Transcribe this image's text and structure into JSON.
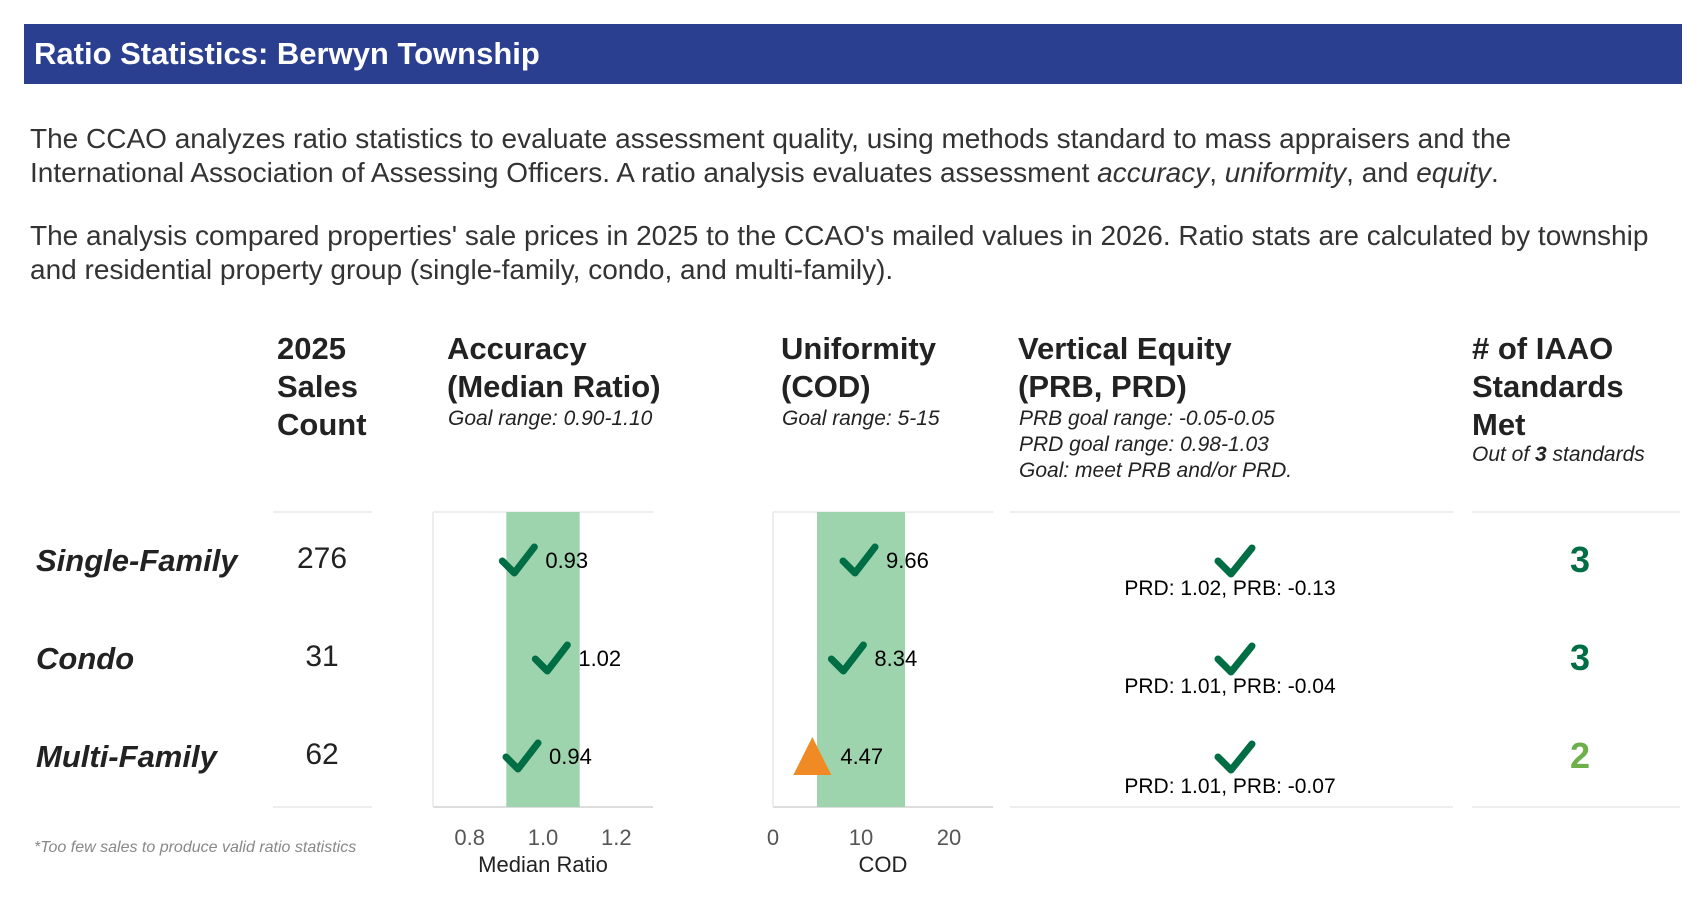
{
  "title": "Ratio Statistics: Berwyn Township",
  "intro": {
    "p1_before": "The CCAO analyzes ratio statistics to evaluate assessment quality, using methods standard to mass appraisers and the International Association of Assessing Officers. A ratio analysis evaluates assessment ",
    "p1_em1": "accuracy",
    "p1_sep1": ", ",
    "p1_em2": "uniformity",
    "p1_sep2": ", and ",
    "p1_em3": "equity",
    "p1_end": ".",
    "p2": "The analysis compared properties' sale prices in 2025 to the CCAO's mailed values in 2026. Ratio stats are calculated by township and residential property group (single-family, condo, and multi-family)."
  },
  "columns": {
    "sales": {
      "line1": "2025",
      "line2": "Sales",
      "line3": "Count"
    },
    "accuracy": {
      "line1": "Accuracy",
      "line2": "(Median Ratio)",
      "goal": "Goal range: 0.90-1.10"
    },
    "uniformity": {
      "line1": "Uniformity",
      "line2": "(COD)",
      "goal": "Goal range: 5-15"
    },
    "equity": {
      "line1": "Vertical Equity",
      "line2": "(PRB, PRD)",
      "goal1": "PRB goal range: -0.05-0.05",
      "goal2": "PRD goal range: 0.98-1.03",
      "goal3": "Goal: meet PRB and/or PRD."
    },
    "standards": {
      "line1": "# of IAAO",
      "line2": "Standards",
      "line3": "Met",
      "sub_before": "Out of ",
      "sub_num": "3",
      "sub_after": " standards"
    }
  },
  "rows": [
    {
      "label": "Single-Family",
      "count": "276",
      "equity_text": "PRD: 1.02, PRB: -0.13",
      "standards_met": "3"
    },
    {
      "label": "Condo",
      "count": "31",
      "equity_text": "PRD: 1.01, PRB: -0.04",
      "standards_met": "3"
    },
    {
      "label": "Multi-Family",
      "count": "62",
      "equity_text": "PRD: 1.01, PRB: -0.07",
      "standards_met": "2"
    }
  ],
  "footnote": "*Too few sales to produce valid ratio statistics",
  "colors": {
    "banner": "#2a3f8f",
    "goal_band": "#9dd4ad",
    "pass": "#006e45",
    "fail": "#f08a24",
    "standards_full": "#006e45",
    "standards_partial": "#6db04a"
  },
  "chart_data": [
    {
      "type": "dot",
      "xlabel": "Median Ratio",
      "xlim": [
        0.7,
        1.3
      ],
      "ticks": [
        {
          "value": 0.8,
          "label": "0.8"
        },
        {
          "value": 1.0,
          "label": "1.0"
        },
        {
          "value": 1.2,
          "label": "1.2"
        }
      ],
      "goal_band": [
        0.9,
        1.1
      ],
      "categories": [
        "Single-Family",
        "Condo",
        "Multi-Family"
      ],
      "values": [
        0.93,
        1.02,
        0.94
      ],
      "labels": [
        "0.93",
        "1.02",
        "0.94"
      ],
      "marker": [
        "check",
        "check",
        "check"
      ]
    },
    {
      "type": "dot",
      "xlabel": "COD",
      "xlim": [
        0,
        25
      ],
      "ticks": [
        {
          "value": 0,
          "label": "0"
        },
        {
          "value": 10,
          "label": "10"
        },
        {
          "value": 20,
          "label": "20"
        }
      ],
      "goal_band": [
        5,
        15
      ],
      "categories": [
        "Single-Family",
        "Condo",
        "Multi-Family"
      ],
      "values": [
        9.66,
        8.34,
        4.47
      ],
      "labels": [
        "9.66",
        "8.34",
        "4.47"
      ],
      "marker": [
        "check",
        "check",
        "triangle"
      ]
    }
  ]
}
